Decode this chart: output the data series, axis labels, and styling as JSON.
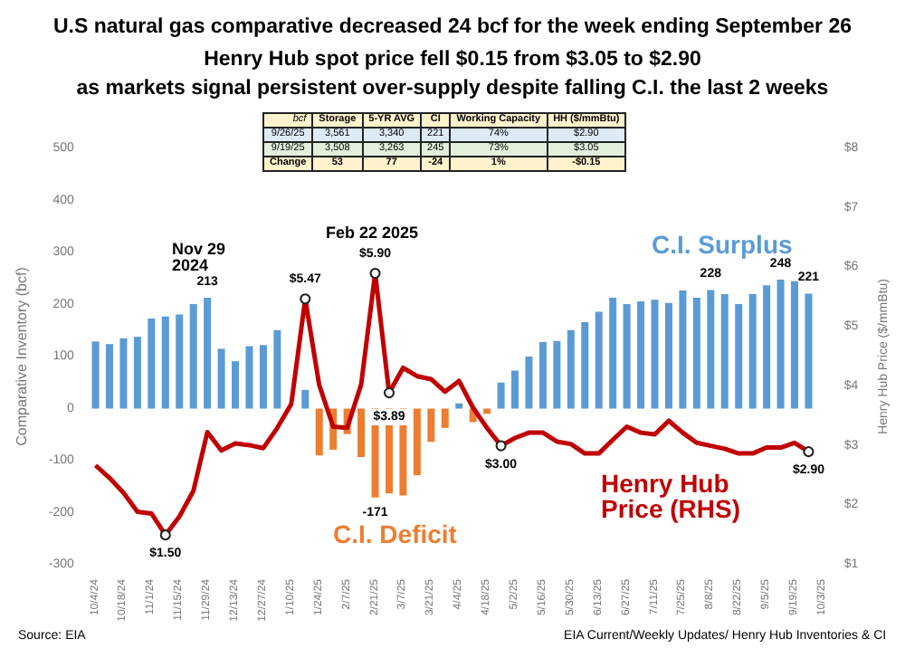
{
  "chart_data": {
    "type": "bar",
    "title": "U.S natural gas comparative decreased 24 bcf for the week ending September 26",
    "subtitle": "Henry Hub spot price fell $0.15 from $3.05 to $2.90\nas markets signal persistent over-supply despite falling C.I. the last 2 weeks",
    "ylabel": "Comparative Inventory (bcf)",
    "y2label": "Henry Hub Price ($/mmBtu)",
    "categories": [
      "10/4/24",
      null,
      "10/18/24",
      null,
      "11/1/24",
      null,
      "11/15/24",
      null,
      "11/29/24",
      null,
      "12/13/24",
      null,
      "12/27/24",
      null,
      "1/10/25",
      null,
      "1/24/25",
      null,
      "2/7/25",
      null,
      "2/21/25",
      null,
      "3/7/25",
      null,
      "3/21/25",
      null,
      "4/4/25",
      null,
      "4/18/25",
      null,
      "5/2/25",
      null,
      "5/16/25",
      null,
      "5/30/25",
      null,
      "6/13/25",
      null,
      "6/27/25",
      null,
      "7/11/25",
      null,
      "7/25/25",
      null,
      "8/8/25",
      null,
      "8/22/25",
      null,
      "9/5/25",
      null,
      "9/19/25",
      null,
      "10/3/25"
    ],
    "series": [
      {
        "name": "C.I. Surplus",
        "color": "#5b9bd5",
        "values": [
          129,
          124,
          135,
          138,
          173,
          177,
          181,
          201,
          213,
          115,
          91,
          120,
          122,
          151,
          null,
          36,
          null,
          null,
          null,
          null,
          null,
          null,
          null,
          null,
          null,
          null,
          10,
          null,
          null,
          50,
          73,
          100,
          128,
          130,
          151,
          166,
          186,
          213,
          201,
          206,
          209,
          203,
          227,
          213,
          228,
          220,
          201,
          220,
          237,
          248,
          245,
          221,
          null
        ],
        "value_labels": [
          null,
          null,
          null,
          null,
          null,
          null,
          null,
          null,
          "213",
          null,
          null,
          null,
          null,
          null,
          null,
          null,
          null,
          null,
          null,
          null,
          null,
          null,
          null,
          null,
          null,
          null,
          null,
          null,
          null,
          null,
          null,
          null,
          null,
          null,
          null,
          null,
          null,
          null,
          null,
          null,
          null,
          null,
          null,
          null,
          "228",
          null,
          null,
          null,
          null,
          "248",
          null,
          "221",
          null
        ]
      },
      {
        "name": "C.I. Deficit",
        "color": "#ed7d31",
        "values": [
          null,
          null,
          null,
          null,
          null,
          null,
          null,
          null,
          null,
          null,
          null,
          null,
          null,
          null,
          null,
          null,
          -90,
          -79,
          -49,
          -93,
          -171,
          -163,
          -167,
          -128,
          -64,
          -37,
          null,
          -26,
          -10,
          null,
          null,
          null,
          null,
          null,
          null,
          null,
          null,
          null,
          null,
          null,
          null,
          null,
          null,
          null,
          null,
          null,
          null,
          null,
          null,
          null,
          null,
          null,
          null
        ],
        "value_labels": [
          null,
          null,
          null,
          null,
          null,
          null,
          null,
          null,
          null,
          null,
          null,
          null,
          null,
          null,
          null,
          null,
          null,
          null,
          null,
          null,
          "-171",
          null,
          null,
          null,
          null,
          null,
          null,
          null,
          null,
          null,
          null,
          null,
          null,
          null,
          null,
          null,
          null,
          null,
          null,
          null,
          null,
          null,
          null,
          null,
          null,
          null,
          null,
          null,
          null,
          null,
          null,
          null,
          null
        ]
      },
      {
        "name": "Henry Hub Price (RHS)",
        "type": "line",
        "axis": "y2",
        "color": "#c00000",
        "values": [
          2.67,
          2.46,
          2.21,
          1.89,
          1.86,
          1.5,
          1.81,
          2.24,
          3.23,
          2.92,
          3.04,
          3.01,
          2.96,
          3.3,
          3.7,
          5.47,
          4.02,
          3.32,
          3.3,
          4.03,
          5.9,
          3.89,
          4.31,
          4.17,
          4.12,
          3.91,
          4.09,
          3.64,
          3.3,
          3.0,
          3.13,
          3.22,
          3.22,
          3.07,
          3.03,
          2.87,
          2.87,
          3.1,
          3.32,
          3.22,
          3.19,
          3.42,
          3.22,
          3.05,
          3.0,
          2.95,
          2.87,
          2.87,
          2.97,
          2.97,
          3.05,
          2.9,
          null
        ]
      },
      {
        "type": "scatter",
        "axis": "y2",
        "color": "#ffffff",
        "marker": "circle",
        "values": [
          null,
          null,
          null,
          null,
          null,
          1.5,
          null,
          null,
          null,
          null,
          null,
          null,
          null,
          null,
          null,
          5.47,
          null,
          null,
          null,
          null,
          5.9,
          3.89,
          null,
          null,
          null,
          null,
          null,
          null,
          null,
          3.0,
          null,
          null,
          null,
          null,
          null,
          null,
          null,
          null,
          null,
          null,
          null,
          null,
          null,
          null,
          null,
          null,
          null,
          null,
          null,
          null,
          null,
          2.9,
          null
        ],
        "value_labels": [
          null,
          null,
          null,
          null,
          null,
          "$1.50",
          null,
          null,
          null,
          null,
          null,
          null,
          null,
          null,
          null,
          "$5.47",
          null,
          null,
          null,
          null,
          "$5.90",
          "$3.89",
          null,
          null,
          null,
          null,
          null,
          null,
          null,
          "$3.00",
          null,
          null,
          null,
          null,
          null,
          null,
          null,
          null,
          null,
          null,
          null,
          null,
          null,
          null,
          null,
          null,
          null,
          null,
          null,
          null,
          null,
          "$2.90",
          null
        ]
      }
    ],
    "ylim": [
      -300,
      500
    ],
    "yticks": [
      -300,
      -200,
      -100,
      0,
      100,
      200,
      300,
      400,
      500
    ],
    "y2lim": [
      1,
      8
    ],
    "y2ticks": [
      {
        "value": 1,
        "label": "$1"
      },
      {
        "value": 2,
        "label": "$2"
      },
      {
        "value": 3,
        "label": "$3"
      },
      {
        "value": 4,
        "label": "$4"
      },
      {
        "value": 5,
        "label": "$5"
      },
      {
        "value": 6,
        "label": "$6"
      },
      {
        "value": 7,
        "label": "$7"
      },
      {
        "value": 8,
        "label": "$8"
      }
    ],
    "grid": false,
    "legend": false,
    "annotations": [
      "bcf",
      "Storage",
      "5-YR AVG",
      "CI",
      "Working Capacity",
      "HH ($/mmBtu)",
      "9/26/25",
      "3,561",
      "3,340",
      "221",
      "74%",
      "$2.90",
      "9/19/25",
      "3,508",
      "3,263",
      "245",
      "73%",
      "$3.05",
      "Change",
      "53",
      "77",
      "-24",
      "1%",
      "-$0.15",
      "Nov 29 2024",
      "Feb 22 2025",
      "Source: EIA",
      "EIA Current/Weekly Updates/ Henry Hub Inventories & CI"
    ]
  }
}
